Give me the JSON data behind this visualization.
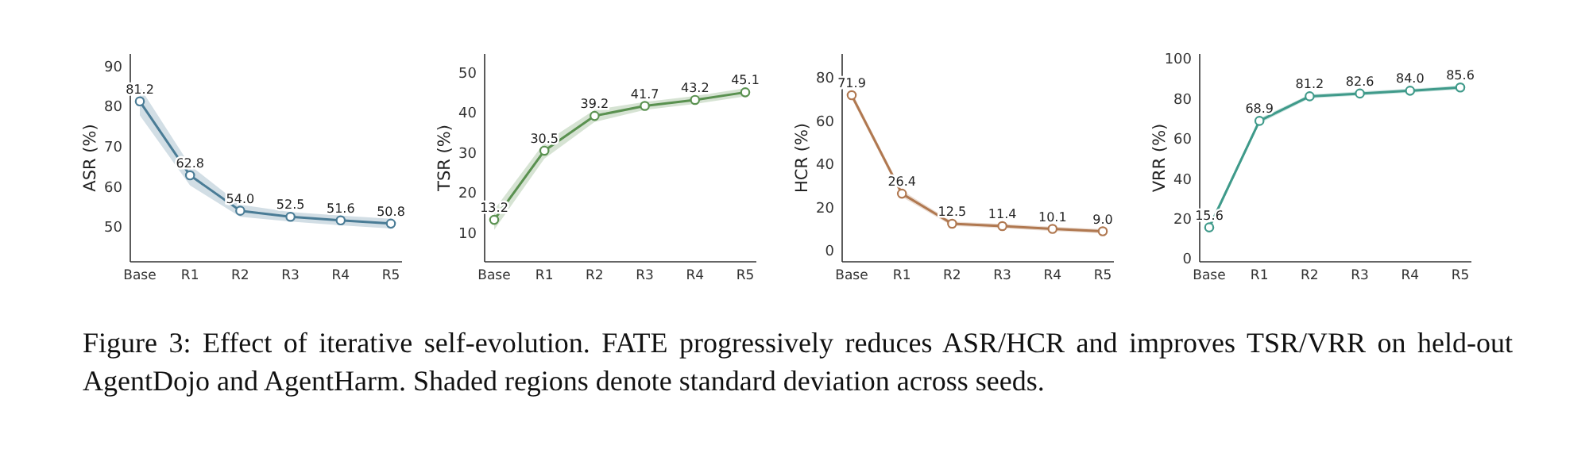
{
  "chart_data": [
    {
      "type": "line",
      "ylabel": "ASR (%)",
      "categories": [
        "Base",
        "R1",
        "R2",
        "R3",
        "R4",
        "R5"
      ],
      "ylim": [
        41.3,
        93
      ],
      "yticks": [
        50,
        60,
        70,
        80,
        90
      ],
      "marker": "circle",
      "grid": false,
      "series": [
        {
          "color": "#4a7c96",
          "values": [
            81.2,
            62.8,
            54.0,
            52.5,
            51.6,
            50.8
          ],
          "value_labels": [
            "81.2",
            "62.8",
            "54.0",
            "52.5",
            "51.6",
            "50.8"
          ],
          "lower": [
            77.7,
            60.3,
            52.5,
            51.3,
            50.4,
            49.6
          ],
          "upper": [
            84.7,
            65.3,
            55.5,
            53.7,
            52.8,
            52.0
          ]
        }
      ],
      "annotations": [
        "Figure 3:   Effect of iterative self-evolution. FATE progressively reduces ASR/HCR and improves TSR/VRR on held-out AgentDojo and AgentHarm. Shaded regions denote standard deviation across seeds."
      ]
    },
    {
      "type": "line",
      "ylabel": "TSR (%)",
      "categories": [
        "Base",
        "R1",
        "R2",
        "R3",
        "R4",
        "R5"
      ],
      "ylim": [
        2.7,
        54.7
      ],
      "yticks": [
        10,
        20,
        30,
        40,
        50
      ],
      "marker": "circle",
      "grid": false,
      "series": [
        {
          "color": "#5a9150",
          "values": [
            13.2,
            30.5,
            39.2,
            41.7,
            43.2,
            45.1
          ],
          "value_labels": [
            "13.2",
            "30.5",
            "39.2",
            "41.7",
            "43.2",
            "45.1"
          ],
          "lower": [
            10.7,
            28.5,
            37.7,
            40.7,
            42.2,
            44.1
          ],
          "upper": [
            15.7,
            32.5,
            40.7,
            42.7,
            44.2,
            46.1
          ]
        }
      ]
    },
    {
      "type": "line",
      "ylabel": "HCR (%)",
      "categories": [
        "Base",
        "R1",
        "R2",
        "R3",
        "R4",
        "R5"
      ],
      "ylim": [
        -5.1,
        91
      ],
      "yticks": [
        0,
        20,
        40,
        60,
        80
      ],
      "marker": "circle",
      "grid": false,
      "series": [
        {
          "color": "#b07850",
          "values": [
            71.9,
            26.4,
            12.5,
            11.4,
            10.1,
            9.0
          ],
          "value_labels": [
            "71.9",
            "26.4",
            "12.5",
            "11.4",
            "10.1",
            "9.0"
          ],
          "lower": [
            70.4,
            24.9,
            11.5,
            10.4,
            9.1,
            8.0
          ],
          "upper": [
            73.4,
            27.9,
            13.5,
            12.4,
            11.1,
            10.0
          ]
        }
      ]
    },
    {
      "type": "line",
      "ylabel": "VRR (%)",
      "categories": [
        "Base",
        "R1",
        "R2",
        "R3",
        "R4",
        "R5"
      ],
      "ylim": [
        -1.6,
        102.4
      ],
      "yticks": [
        0,
        20,
        40,
        60,
        80,
        100
      ],
      "marker": "circle",
      "grid": false,
      "series": [
        {
          "color": "#3f9a8a",
          "values": [
            15.6,
            68.9,
            81.2,
            82.6,
            84.0,
            85.6
          ],
          "value_labels": [
            "15.6",
            "68.9",
            "81.2",
            "82.6",
            "84.0",
            "85.6"
          ],
          "lower": [
            14.1,
            67.7,
            80.2,
            81.6,
            83.0,
            84.6
          ],
          "upper": [
            17.1,
            70.1,
            82.2,
            83.6,
            85.0,
            86.6
          ]
        }
      ]
    }
  ]
}
